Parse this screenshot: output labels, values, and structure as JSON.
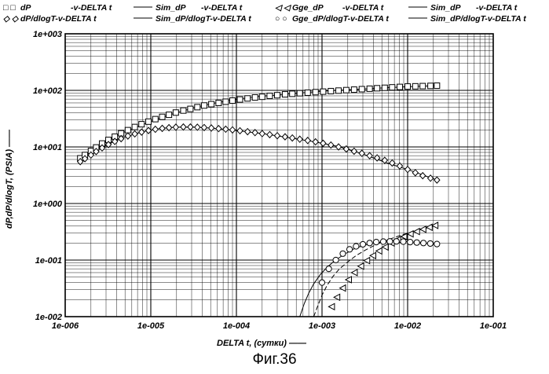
{
  "figure_caption": "Фиг.36",
  "legend": [
    {
      "marker": "□ □",
      "label": "dP",
      "suffix": "-v-DELTA  t"
    },
    {
      "marker": "",
      "label": "Sim_dP",
      "suffix": "-v-DELTA  t"
    },
    {
      "marker": "◁ ◁",
      "label": "Gge_dP",
      "suffix": "-v-DELTA  t"
    },
    {
      "marker": "",
      "label": "Sim_dP",
      "suffix": "-v-DELTA  t"
    },
    {
      "marker": "◇ ◇",
      "label": "dP/dlogT-v-DELTA  t",
      "suffix": ""
    },
    {
      "marker": "",
      "label": "Sim_dP/dlogT-v-DELTA  t",
      "suffix": ""
    },
    {
      "marker": "○ ○",
      "label": "Gge_dP/dlogT-v-DELTA  t",
      "suffix": ""
    },
    {
      "marker": "",
      "label": "Sim_dP/dlogT-v-DELTA  t",
      "suffix": ""
    }
  ],
  "colors": {
    "ink": "#000000",
    "background": "#ffffff"
  },
  "chart_data": {
    "type": "scatter",
    "xscale": "log",
    "yscale": "log",
    "xlim": [
      1e-06,
      0.1
    ],
    "ylim": [
      0.01,
      1000
    ],
    "grid": true,
    "legend_position": "top",
    "xlabel": "DELTA  t, (сутки) ——",
    "ylabel": "dP,dP/dlogT, (PSIA) ——",
    "x_ticks": [
      "1e-006",
      "1e-005",
      "1e-004",
      "1e-003",
      "1e-002",
      "1e-001"
    ],
    "y_ticks": [
      "1e-002",
      "1e-001",
      "1e+000",
      "1e+001",
      "1e+002",
      "1e+003"
    ],
    "series": [
      {
        "name": "dP",
        "marker": "square",
        "x": [
          1.5e-06,
          1.7e-06,
          2e-06,
          2.3e-06,
          2.7e-06,
          3.2e-06,
          3.8e-06,
          4.5e-06,
          5.4e-06,
          6.5e-06,
          7.8e-06,
          9.4e-06,
          1.13e-05,
          1.36e-05,
          1.63e-05,
          1.96e-05,
          2.4e-05,
          2.9e-05,
          3.5e-05,
          4.2e-05,
          5.1e-05,
          6.2e-05,
          7.5e-05,
          9e-05,
          0.00011,
          0.000135,
          0.000165,
          0.0002,
          0.000245,
          0.0003,
          0.00037,
          0.00045,
          0.00055,
          0.00068,
          0.00084,
          0.00103,
          0.00127,
          0.00156,
          0.00192,
          0.00237,
          0.00292,
          0.0036,
          0.0044,
          0.0054,
          0.0066,
          0.0081,
          0.01,
          0.0123,
          0.015,
          0.0185,
          0.022
        ],
        "y": [
          6.3,
          7.2,
          8.5,
          9.8,
          11.5,
          13.3,
          15.2,
          17.4,
          19.8,
          22.5,
          25.2,
          28,
          31,
          34,
          37,
          40.5,
          44,
          47,
          50.5,
          54,
          57,
          60,
          63,
          66,
          69,
          72,
          75,
          77,
          80,
          82,
          85,
          87,
          89,
          91,
          93,
          95,
          97,
          99,
          101,
          103,
          105,
          107,
          109,
          111,
          113,
          115,
          117,
          118,
          119,
          120,
          121
        ]
      },
      {
        "name": "dP/dlogT",
        "marker": "diamond",
        "x": [
          1.5e-06,
          1.7e-06,
          2e-06,
          2.3e-06,
          2.7e-06,
          3.2e-06,
          3.8e-06,
          4.5e-06,
          5.4e-06,
          6.5e-06,
          7.8e-06,
          9.4e-06,
          1.13e-05,
          1.36e-05,
          1.63e-05,
          1.96e-05,
          2.4e-05,
          2.9e-05,
          3.5e-05,
          4.2e-05,
          5.1e-05,
          6.2e-05,
          7.5e-05,
          9e-05,
          0.00011,
          0.000135,
          0.000165,
          0.0002,
          0.000245,
          0.0003,
          0.00037,
          0.00045,
          0.00055,
          0.00068,
          0.00084,
          0.00103,
          0.00127,
          0.00156,
          0.00192,
          0.00237,
          0.00292,
          0.0036,
          0.0044,
          0.0054,
          0.0066,
          0.0081,
          0.01,
          0.0123,
          0.015,
          0.0185,
          0.022
        ],
        "y": [
          5.5,
          6.2,
          7.2,
          8.3,
          9.6,
          11,
          12.5,
          14,
          15.6,
          17,
          18.3,
          19.5,
          20.5,
          21.3,
          21.9,
          22.3,
          22.5,
          22.5,
          22.3,
          22,
          21.6,
          21.1,
          20.6,
          20,
          19.3,
          18.6,
          17.9,
          17.2,
          16.5,
          15.8,
          15.1,
          14.4,
          13.7,
          13,
          12.3,
          11.6,
          10.8,
          10,
          9.2,
          8.4,
          7.7,
          7,
          6.4,
          5.8,
          5.2,
          4.6,
          4,
          3.5,
          3.1,
          2.8,
          2.6
        ]
      },
      {
        "name": "Gge_dP",
        "marker": "triangle-left",
        "x": [
          0.0013,
          0.0015,
          0.00175,
          0.00205,
          0.0024,
          0.00285,
          0.00335,
          0.00395,
          0.00465,
          0.0055,
          0.0065,
          0.0077,
          0.0091,
          0.0108,
          0.0128,
          0.0152,
          0.018,
          0.021
        ],
        "y": [
          0.015,
          0.022,
          0.032,
          0.045,
          0.06,
          0.078,
          0.098,
          0.12,
          0.145,
          0.17,
          0.2,
          0.23,
          0.26,
          0.29,
          0.32,
          0.35,
          0.38,
          0.41
        ]
      },
      {
        "name": "Gge_dP/dlogT",
        "marker": "circle",
        "x": [
          0.001,
          0.0012,
          0.00145,
          0.00175,
          0.0021,
          0.0025,
          0.003,
          0.0036,
          0.0043,
          0.0052,
          0.0062,
          0.0074,
          0.0089,
          0.0107,
          0.0128,
          0.0153,
          0.0184,
          0.022
        ],
        "y": [
          0.04,
          0.07,
          0.1,
          0.13,
          0.155,
          0.175,
          0.19,
          0.2,
          0.208,
          0.212,
          0.214,
          0.214,
          0.212,
          0.208,
          0.204,
          0.2,
          0.196,
          0.192
        ]
      },
      {
        "name": "Sim_dP",
        "marker": "line",
        "x": [
          1.5e-06,
          2e-06,
          3e-06,
          5e-06,
          8e-06,
          1.3e-05,
          2e-05,
          3.5e-05,
          6e-05,
          0.0001,
          0.0002,
          0.0004,
          0.0008,
          0.0015,
          0.003,
          0.006,
          0.01,
          0.022
        ],
        "y": [
          6.5,
          8.6,
          12.6,
          18.6,
          24.7,
          32.5,
          40.5,
          51,
          61,
          70,
          79,
          86,
          94,
          100,
          106,
          112,
          116,
          121
        ]
      },
      {
        "name": "Sim_dP/dlogT",
        "marker": "line",
        "x": [
          1.5e-06,
          2e-06,
          3e-06,
          5e-06,
          8e-06,
          1.3e-05,
          2e-05,
          3.5e-05,
          6e-05,
          0.0001,
          0.0002,
          0.0004,
          0.0008,
          0.0015,
          0.003,
          0.006,
          0.01,
          0.022
        ],
        "y": [
          5.8,
          7.4,
          10.7,
          15,
          18.5,
          21.2,
          22.4,
          22.3,
          21,
          19.5,
          17.2,
          14.7,
          12.4,
          10.3,
          7.5,
          5.1,
          4,
          2.6
        ]
      },
      {
        "name": "Sim_dP",
        "marker": "dashed",
        "x": [
          0.0008,
          0.0009,
          0.001,
          0.00115,
          0.00135,
          0.0016,
          0.002,
          0.0025,
          0.0032,
          0.0042,
          0.0055,
          0.0075,
          0.01,
          0.014,
          0.022
        ],
        "y": [
          0.01,
          0.016,
          0.024,
          0.036,
          0.052,
          0.07,
          0.093,
          0.12,
          0.15,
          0.185,
          0.22,
          0.26,
          0.3,
          0.345,
          0.41
        ]
      },
      {
        "name": "Sim_dP/dlogT",
        "marker": "solid",
        "x": [
          0.00055,
          0.00062,
          0.0007,
          0.0008,
          0.00095,
          0.00115,
          0.0014,
          0.0018,
          0.0023,
          0.003,
          0.004,
          0.0055,
          0.008,
          0.012,
          0.022
        ],
        "y": [
          0.01,
          0.017,
          0.026,
          0.038,
          0.055,
          0.075,
          0.097,
          0.125,
          0.155,
          0.18,
          0.2,
          0.213,
          0.216,
          0.208,
          0.192
        ]
      }
    ]
  }
}
